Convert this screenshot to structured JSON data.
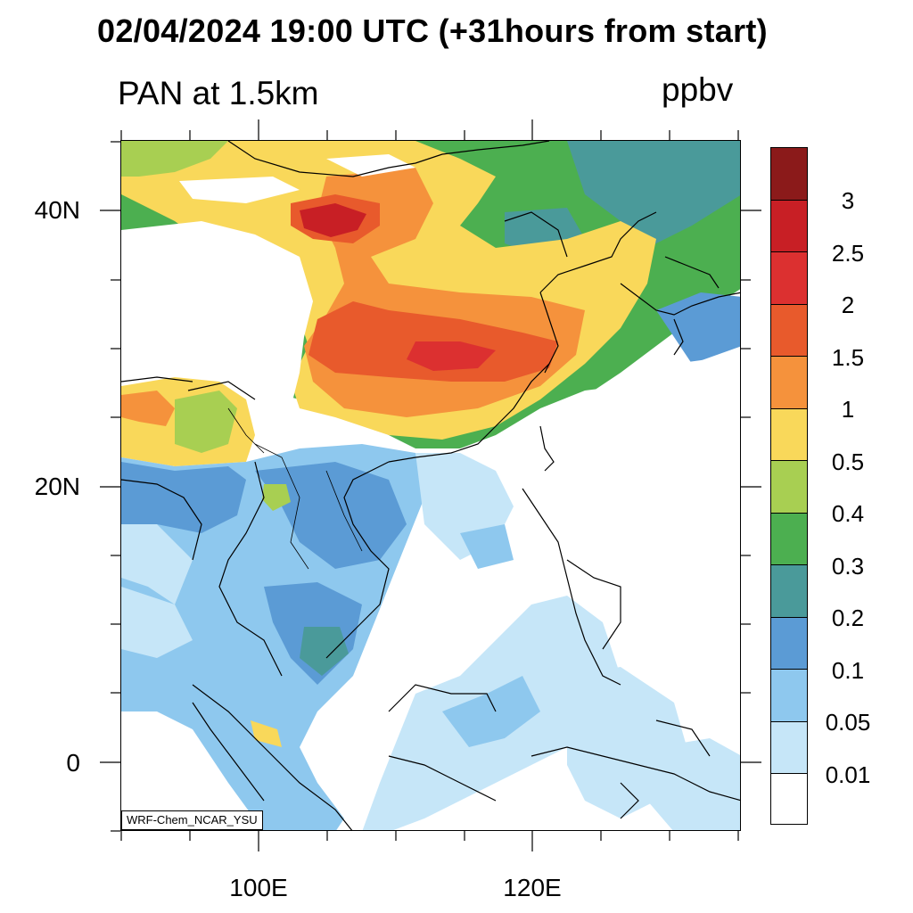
{
  "header": {
    "title": "02/04/2024 19:00 UTC (+31hours from start)",
    "variable": "PAN at 1.5km",
    "units": "ppbv"
  },
  "map": {
    "lat_labels": [
      "40N",
      "20N",
      "0"
    ],
    "lon_labels": [
      "100E",
      "120E"
    ],
    "lat_range": [
      -5,
      45
    ],
    "lon_range": [
      90,
      135
    ],
    "credit": "WRF-Chem_NCAR_YSU"
  },
  "colorbar": {
    "labels": [
      "3",
      "2.5",
      "2",
      "1.5",
      "1",
      "0.5",
      "0.4",
      "0.3",
      "0.2",
      "0.1",
      "0.05",
      "0.01"
    ],
    "colors": [
      "#8b1a1a",
      "#c81f25",
      "#dc3030",
      "#e85a2c",
      "#f5923c",
      "#f9d85a",
      "#a8cf52",
      "#4caf50",
      "#4a9a9a",
      "#5b9bd5",
      "#8ec8ee",
      "#c6e6f8",
      "#ffffff"
    ]
  }
}
